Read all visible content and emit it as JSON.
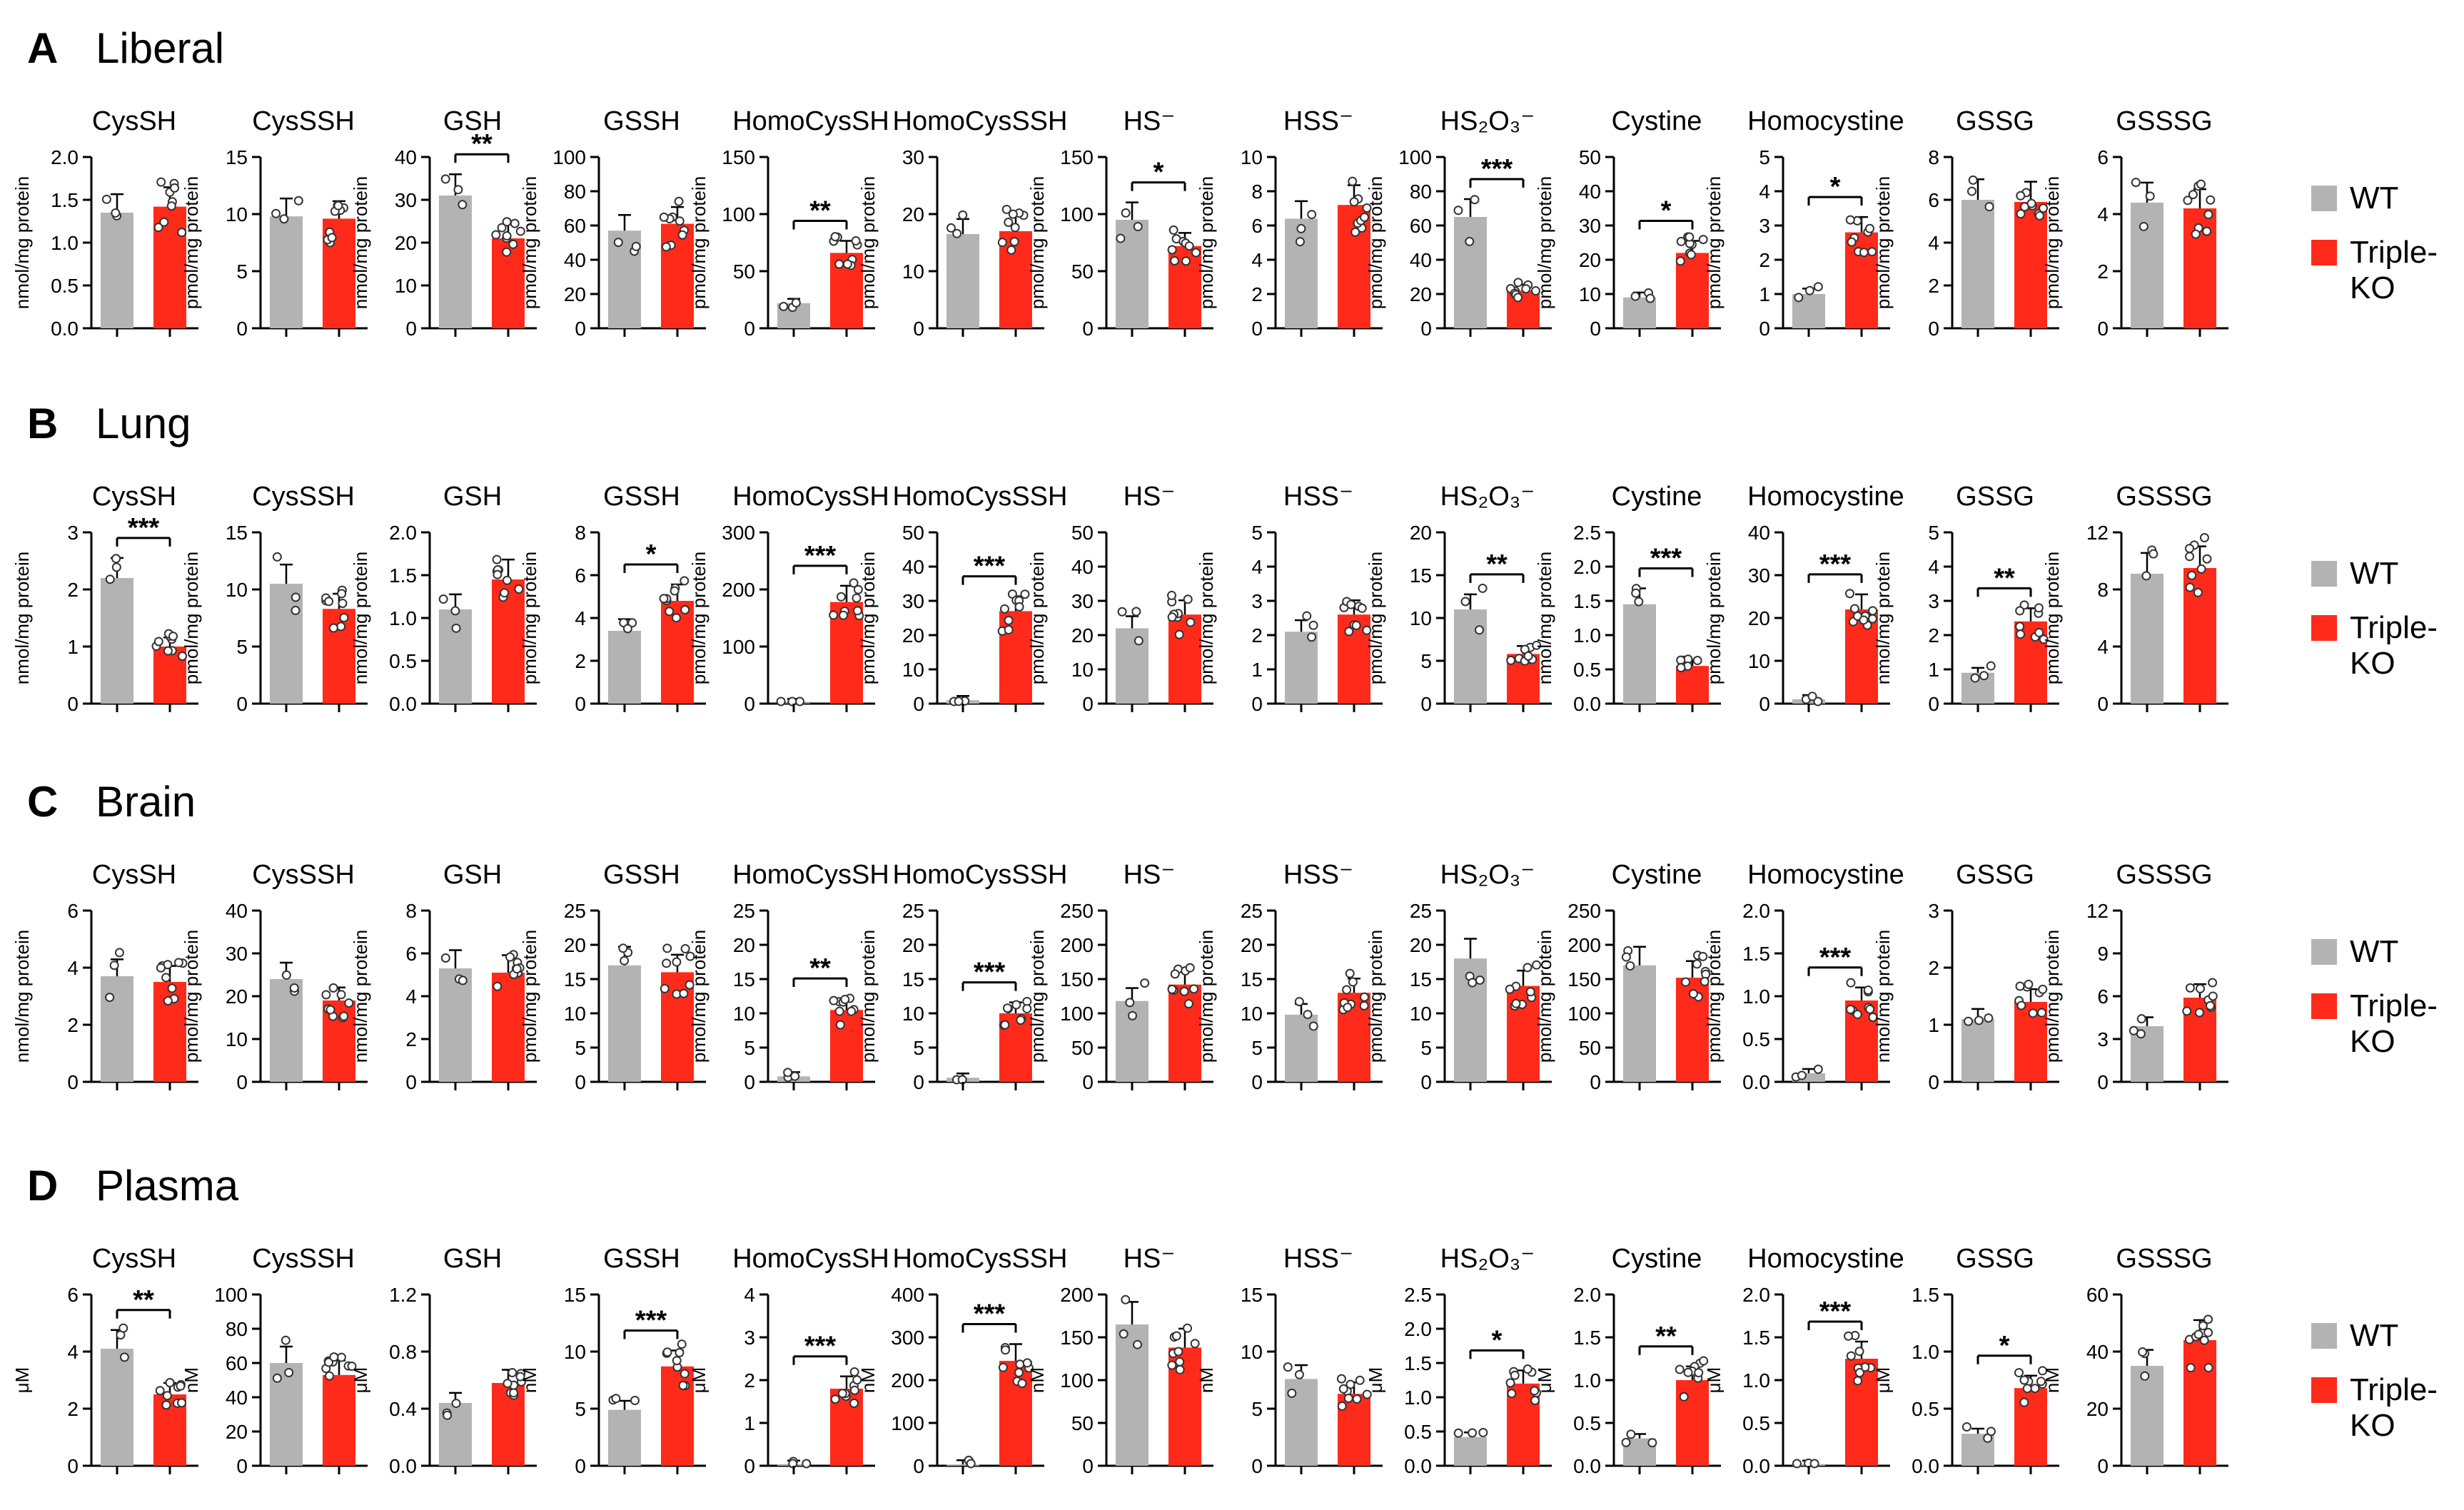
{
  "legend": {
    "wt": "WT",
    "tko_line1": "Triple-",
    "tko_line2": "KO"
  },
  "colors": {
    "wt": "#b3b3b3",
    "tko": "#ff2a1a",
    "axis": "#000000"
  },
  "panels": [
    {
      "letter": "A",
      "title": "Liberal",
      "charts": [
        {
          "title": "CysSH",
          "ylabel": "nmol/mg protein",
          "ylim": [
            0,
            2.0
          ],
          "ticks": [
            "0.0",
            "0.5",
            "1.0",
            "1.5",
            "2.0"
          ],
          "values": [
            1.35,
            1.42
          ],
          "sig": ""
        },
        {
          "title": "CysSSH",
          "ylabel": "pmol/mg protein",
          "ylim": [
            0,
            15
          ],
          "ticks": [
            "0",
            "5",
            "10",
            "15"
          ],
          "values": [
            9.8,
            9.6
          ],
          "sig": ""
        },
        {
          "title": "GSH",
          "ylabel": "nmol/mg protein",
          "ylim": [
            0,
            40
          ],
          "ticks": [
            "0",
            "10",
            "20",
            "30",
            "40"
          ],
          "values": [
            31,
            21
          ],
          "sig": "**"
        },
        {
          "title": "GSSH",
          "ylabel": "pmol/mg protein",
          "ylim": [
            0,
            100
          ],
          "ticks": [
            "0",
            "20",
            "40",
            "60",
            "80",
            "100"
          ],
          "values": [
            57,
            61
          ],
          "sig": ""
        },
        {
          "title": "HomoCysSH",
          "ylabel": "pmol/mg protein",
          "ylim": [
            0,
            150
          ],
          "ticks": [
            "0",
            "50",
            "100",
            "150"
          ],
          "values": [
            22,
            66
          ],
          "sig": "**"
        },
        {
          "title": "HomoCysSSH",
          "ylabel": "pmol/mg protein",
          "ylim": [
            0,
            30
          ],
          "ticks": [
            "0",
            "10",
            "20",
            "30"
          ],
          "values": [
            16.5,
            17
          ],
          "sig": ""
        },
        {
          "title": "HS⁻",
          "ylabel": "pmol/mg protein",
          "ylim": [
            0,
            150
          ],
          "ticks": [
            "0",
            "50",
            "100",
            "150"
          ],
          "values": [
            95,
            72
          ],
          "sig": "*"
        },
        {
          "title": "HSS⁻",
          "ylabel": "pmol/mg protein",
          "ylim": [
            0,
            10
          ],
          "ticks": [
            "0",
            "2",
            "4",
            "6",
            "8",
            "10"
          ],
          "values": [
            6.4,
            7.2
          ],
          "sig": ""
        },
        {
          "title": "HS₂O₃⁻",
          "ylabel": "pmol/mg protein",
          "ylim": [
            0,
            100
          ],
          "ticks": [
            "0",
            "20",
            "40",
            "60",
            "80",
            "100"
          ],
          "values": [
            65,
            22
          ],
          "sig": "***"
        },
        {
          "title": "Cystine",
          "ylabel": "pmol/mg protein",
          "ylim": [
            0,
            50
          ],
          "ticks": [
            "0",
            "10",
            "20",
            "30",
            "40",
            "50"
          ],
          "values": [
            9,
            22
          ],
          "sig": "*"
        },
        {
          "title": "Homocystine",
          "ylabel": "pmol/mg protein",
          "ylim": [
            0,
            5
          ],
          "ticks": [
            "0",
            "1",
            "2",
            "3",
            "4",
            "5"
          ],
          "values": [
            1.0,
            2.8
          ],
          "sig": "*"
        },
        {
          "title": "GSSG",
          "ylabel": "pmol/mg protein",
          "ylim": [
            0,
            8
          ],
          "ticks": [
            "0",
            "2",
            "4",
            "6",
            "8"
          ],
          "values": [
            6.0,
            5.9
          ],
          "sig": ""
        },
        {
          "title": "GSSSG",
          "ylabel": "pmol/mg protein",
          "ylim": [
            0,
            6
          ],
          "ticks": [
            "0",
            "2",
            "4",
            "6"
          ],
          "values": [
            4.4,
            4.2
          ],
          "sig": ""
        }
      ]
    },
    {
      "letter": "B",
      "title": "Lung",
      "charts": [
        {
          "title": "CysSH",
          "ylabel": "nmol/mg protein",
          "ylim": [
            0,
            3
          ],
          "ticks": [
            "0",
            "1",
            "2",
            "3"
          ],
          "values": [
            2.2,
            1.0
          ],
          "sig": "***"
        },
        {
          "title": "CysSSH",
          "ylabel": "pmol/mg protein",
          "ylim": [
            0,
            15
          ],
          "ticks": [
            "0",
            "5",
            "10",
            "15"
          ],
          "values": [
            10.5,
            8.3
          ],
          "sig": ""
        },
        {
          "title": "GSH",
          "ylabel": "nmol/mg protein",
          "ylim": [
            0,
            2.0
          ],
          "ticks": [
            "0.0",
            "0.5",
            "1.0",
            "1.5",
            "2.0"
          ],
          "values": [
            1.1,
            1.45
          ],
          "sig": ""
        },
        {
          "title": "GSSH",
          "ylabel": "pmol/mg protein",
          "ylim": [
            0,
            8
          ],
          "ticks": [
            "0",
            "2",
            "4",
            "6",
            "8"
          ],
          "values": [
            3.4,
            4.8
          ],
          "sig": "*"
        },
        {
          "title": "HomoCysSH",
          "ylabel": "pmol/mg protein",
          "ylim": [
            0,
            300
          ],
          "ticks": [
            "0",
            "100",
            "200",
            "300"
          ],
          "values": [
            1,
            178
          ],
          "sig": "***"
        },
        {
          "title": "HomoCysSSH",
          "ylabel": "pmol/mg protein",
          "ylim": [
            0,
            50
          ],
          "ticks": [
            "0",
            "10",
            "20",
            "30",
            "40",
            "50"
          ],
          "values": [
            1,
            27
          ],
          "sig": "***"
        },
        {
          "title": "HS⁻",
          "ylabel": "pmol/mg protein",
          "ylim": [
            0,
            50
          ],
          "ticks": [
            "0",
            "10",
            "20",
            "30",
            "40",
            "50"
          ],
          "values": [
            22,
            26
          ],
          "sig": ""
        },
        {
          "title": "HSS⁻",
          "ylabel": "pmol/mg protein",
          "ylim": [
            0,
            5
          ],
          "ticks": [
            "0",
            "1",
            "2",
            "3",
            "4",
            "5"
          ],
          "values": [
            2.1,
            2.6
          ],
          "sig": ""
        },
        {
          "title": "HS₂O₃⁻",
          "ylabel": "pmol/mg protein",
          "ylim": [
            0,
            20
          ],
          "ticks": [
            "0",
            "5",
            "10",
            "15",
            "20"
          ],
          "values": [
            11,
            5.8
          ],
          "sig": "**"
        },
        {
          "title": "Cystine",
          "ylabel": "nmol/mg protein",
          "ylim": [
            0,
            2.5
          ],
          "ticks": [
            "0.0",
            "0.5",
            "1.0",
            "1.5",
            "2.0",
            "2.5"
          ],
          "values": [
            1.45,
            0.55
          ],
          "sig": "***"
        },
        {
          "title": "Homocystine",
          "ylabel": "pmol/mg protein",
          "ylim": [
            0,
            40
          ],
          "ticks": [
            "0",
            "10",
            "20",
            "30",
            "40"
          ],
          "values": [
            1,
            22
          ],
          "sig": "***"
        },
        {
          "title": "GSSG",
          "ylabel": "nmol/mg protein",
          "ylim": [
            0,
            5
          ],
          "ticks": [
            "0",
            "1",
            "2",
            "3",
            "4",
            "5"
          ],
          "values": [
            0.9,
            2.4
          ],
          "sig": "**"
        },
        {
          "title": "GSSSG",
          "ylabel": "pmol/mg protein",
          "ylim": [
            0,
            12
          ],
          "ticks": [
            "0",
            "4",
            "8",
            "12"
          ],
          "values": [
            9.1,
            9.5
          ],
          "sig": ""
        }
      ]
    },
    {
      "letter": "C",
      "title": "Brain",
      "charts": [
        {
          "title": "CysSH",
          "ylabel": "nmol/mg protein",
          "ylim": [
            0,
            6
          ],
          "ticks": [
            "0",
            "2",
            "4",
            "6"
          ],
          "values": [
            3.7,
            3.5
          ],
          "sig": ""
        },
        {
          "title": "CysSSH",
          "ylabel": "pmol/mg protein",
          "ylim": [
            0,
            40
          ],
          "ticks": [
            "0",
            "10",
            "20",
            "30",
            "40"
          ],
          "values": [
            24,
            19
          ],
          "sig": ""
        },
        {
          "title": "GSH",
          "ylabel": "nmol/mg protein",
          "ylim": [
            0,
            8
          ],
          "ticks": [
            "0",
            "2",
            "4",
            "6",
            "8"
          ],
          "values": [
            5.3,
            5.1
          ],
          "sig": ""
        },
        {
          "title": "GSSH",
          "ylabel": "pmol/mg protein",
          "ylim": [
            0,
            25
          ],
          "ticks": [
            "0",
            "5",
            "10",
            "15",
            "20",
            "25"
          ],
          "values": [
            17,
            16
          ],
          "sig": ""
        },
        {
          "title": "HomoCysSH",
          "ylabel": "pmol/mg protein",
          "ylim": [
            0,
            25
          ],
          "ticks": [
            "0",
            "5",
            "10",
            "15",
            "20",
            "25"
          ],
          "values": [
            0.8,
            10.5
          ],
          "sig": "**"
        },
        {
          "title": "HomoCysSSH",
          "ylabel": "pmol/mg protein",
          "ylim": [
            0,
            25
          ],
          "ticks": [
            "0",
            "5",
            "10",
            "15",
            "20",
            "25"
          ],
          "values": [
            0.6,
            10
          ],
          "sig": "***"
        },
        {
          "title": "HS⁻",
          "ylabel": "pmol/mg protein",
          "ylim": [
            0,
            250
          ],
          "ticks": [
            "0",
            "50",
            "100",
            "150",
            "200",
            "250"
          ],
          "values": [
            118,
            142
          ],
          "sig": ""
        },
        {
          "title": "HSS⁻",
          "ylabel": "pmol/mg protein",
          "ylim": [
            0,
            25
          ],
          "ticks": [
            "0",
            "5",
            "10",
            "15",
            "20",
            "25"
          ],
          "values": [
            9.8,
            13
          ],
          "sig": ""
        },
        {
          "title": "HS₂O₃⁻",
          "ylabel": "pmol/mg protein",
          "ylim": [
            0,
            25
          ],
          "ticks": [
            "0",
            "5",
            "10",
            "15",
            "20",
            "25"
          ],
          "values": [
            18,
            14
          ],
          "sig": ""
        },
        {
          "title": "Cystine",
          "ylabel": "pmol/mg protein",
          "ylim": [
            0,
            250
          ],
          "ticks": [
            "0",
            "50",
            "100",
            "150",
            "200",
            "250"
          ],
          "values": [
            170,
            152
          ],
          "sig": ""
        },
        {
          "title": "Homocystine",
          "ylabel": "pmol/mg protein",
          "ylim": [
            0,
            2.0
          ],
          "ticks": [
            "0.0",
            "0.5",
            "1.0",
            "1.5",
            "2.0"
          ],
          "values": [
            0.1,
            0.95
          ],
          "sig": "***"
        },
        {
          "title": "GSSG",
          "ylabel": "nmol/mg protein",
          "ylim": [
            0,
            3
          ],
          "ticks": [
            "0",
            "1",
            "2",
            "3"
          ],
          "values": [
            1.1,
            1.4
          ],
          "sig": ""
        },
        {
          "title": "GSSSG",
          "ylabel": "pmol/mg protein",
          "ylim": [
            0,
            12
          ],
          "ticks": [
            "0",
            "3",
            "6",
            "9",
            "12"
          ],
          "values": [
            3.9,
            5.9
          ],
          "sig": ""
        }
      ]
    },
    {
      "letter": "D",
      "title": "Plasma",
      "charts": [
        {
          "title": "CysSH",
          "ylabel": "μM",
          "ylim": [
            0,
            6
          ],
          "ticks": [
            "0",
            "2",
            "4",
            "6"
          ],
          "values": [
            4.1,
            2.5
          ],
          "sig": "**"
        },
        {
          "title": "CysSSH",
          "ylabel": "nM",
          "ylim": [
            0,
            100
          ],
          "ticks": [
            "0",
            "20",
            "40",
            "60",
            "80",
            "100"
          ],
          "values": [
            60,
            53
          ],
          "sig": ""
        },
        {
          "title": "GSH",
          "ylabel": "μM",
          "ylim": [
            0,
            1.2
          ],
          "ticks": [
            "0.0",
            "0.4",
            "0.8",
            "1.2"
          ],
          "values": [
            0.44,
            0.58
          ],
          "sig": ""
        },
        {
          "title": "GSSH",
          "ylabel": "nM",
          "ylim": [
            0,
            15
          ],
          "ticks": [
            "0",
            "5",
            "10",
            "15"
          ],
          "values": [
            4.9,
            8.7
          ],
          "sig": "***"
        },
        {
          "title": "HomoCysSH",
          "ylabel": "μM",
          "ylim": [
            0,
            4
          ],
          "ticks": [
            "0",
            "1",
            "2",
            "3",
            "4"
          ],
          "values": [
            0.02,
            1.8
          ],
          "sig": "***"
        },
        {
          "title": "HomoCysSSH",
          "ylabel": "nM",
          "ylim": [
            0,
            400
          ],
          "ticks": [
            "0",
            "100",
            "200",
            "300",
            "400"
          ],
          "values": [
            3,
            245
          ],
          "sig": "***"
        },
        {
          "title": "HS⁻",
          "ylabel": "nM",
          "ylim": [
            0,
            200
          ],
          "ticks": [
            "0",
            "50",
            "100",
            "150",
            "200"
          ],
          "values": [
            165,
            138
          ],
          "sig": ""
        },
        {
          "title": "HSS⁻",
          "ylabel": "nM",
          "ylim": [
            0,
            15
          ],
          "ticks": [
            "0",
            "5",
            "10",
            "15"
          ],
          "values": [
            7.6,
            6.3
          ],
          "sig": ""
        },
        {
          "title": "HS₂O₃⁻",
          "ylabel": "μM",
          "ylim": [
            0,
            2.5
          ],
          "ticks": [
            "0.0",
            "0.5",
            "1.0",
            "1.5",
            "2.0",
            "2.5"
          ],
          "values": [
            0.42,
            1.2
          ],
          "sig": "*"
        },
        {
          "title": "Cystine",
          "ylabel": "μM",
          "ylim": [
            0,
            2.0
          ],
          "ticks": [
            "0.0",
            "0.5",
            "1.0",
            "1.5",
            "2.0"
          ],
          "values": [
            0.32,
            1.0
          ],
          "sig": "**"
        },
        {
          "title": "Homocystine",
          "ylabel": "μM",
          "ylim": [
            0,
            2.0
          ],
          "ticks": [
            "0.0",
            "0.5",
            "1.0",
            "1.5",
            "2.0"
          ],
          "values": [
            0.01,
            1.25
          ],
          "sig": "***"
        },
        {
          "title": "GSSG",
          "ylabel": "μM",
          "ylim": [
            0,
            1.5
          ],
          "ticks": [
            "0.0",
            "0.5",
            "1.0",
            "1.5"
          ],
          "values": [
            0.28,
            0.68
          ],
          "sig": "*"
        },
        {
          "title": "GSSSG",
          "ylabel": "nM",
          "ylim": [
            0,
            60
          ],
          "ticks": [
            "0",
            "20",
            "40",
            "60"
          ],
          "values": [
            35,
            44
          ],
          "sig": ""
        }
      ]
    }
  ]
}
